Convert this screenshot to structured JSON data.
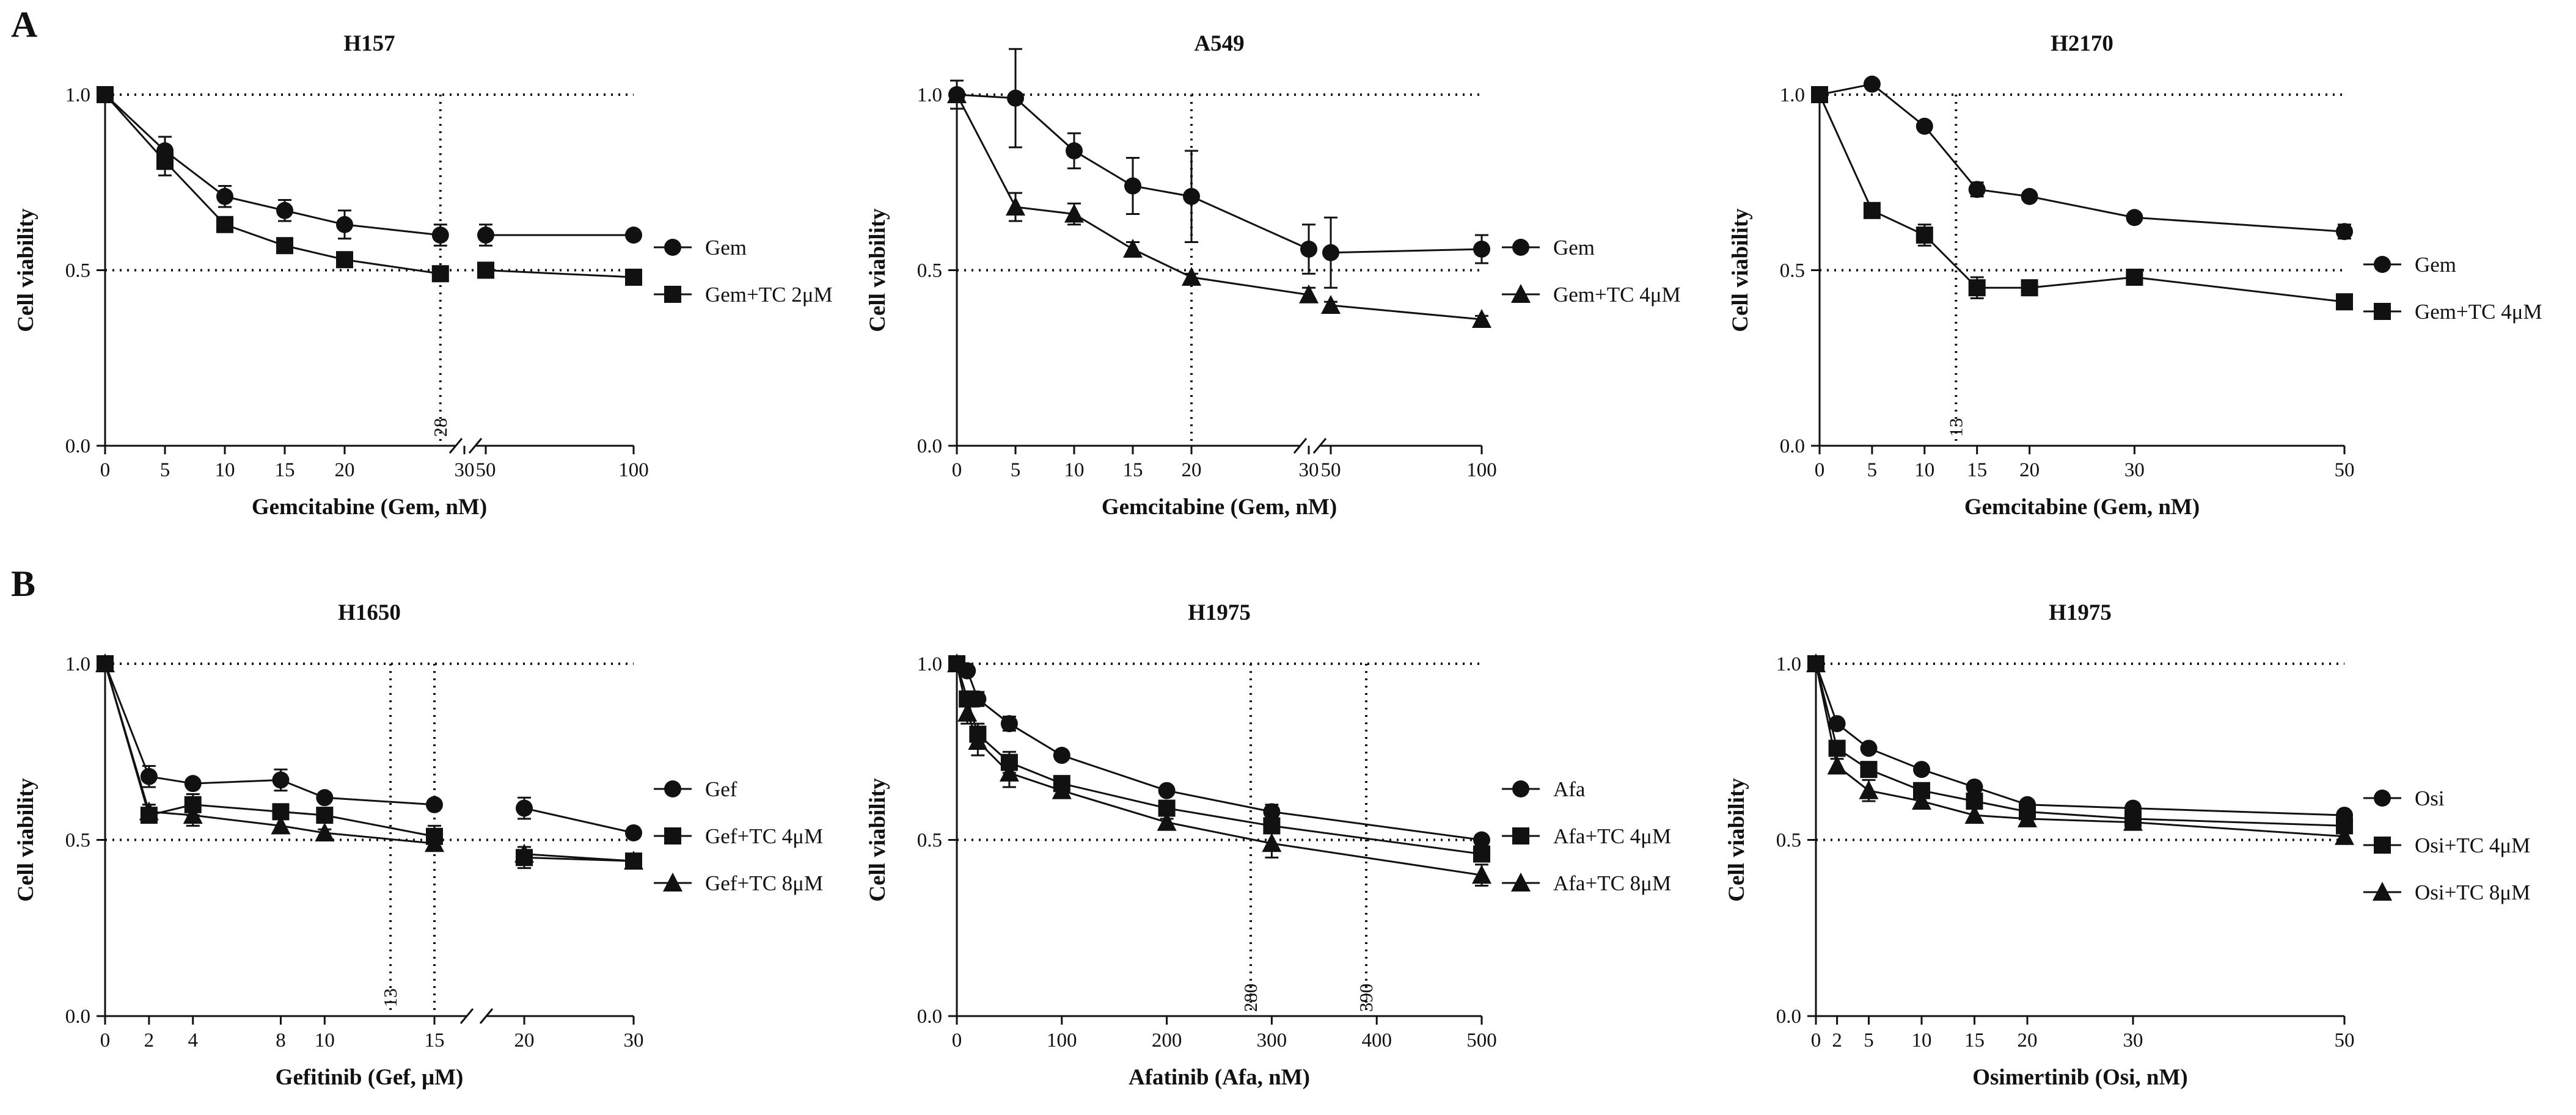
{
  "panel_labels": {
    "A": "A",
    "B": "B"
  },
  "chart_data": [
    {
      "type": "line",
      "title": "H157",
      "xlabel": "Gemcitabine (Gem, nM)",
      "ylabel": "Cell viability",
      "ylim": [
        0,
        1.0
      ],
      "yticks": [
        0.0,
        0.5,
        1.0
      ],
      "ytick_labels": [
        "0.0",
        "0.5",
        "1.0"
      ],
      "x_axis_break": true,
      "xticks": [
        0,
        5,
        10,
        15,
        20,
        30,
        50,
        100
      ],
      "xtick_labels": [
        "0",
        "5",
        "10",
        "15",
        "20",
        "30",
        "50",
        "100"
      ],
      "hlines": [
        1.0,
        0.5
      ],
      "vlines": [
        {
          "x": 28,
          "label": "28"
        }
      ],
      "series": [
        {
          "name": "Gem",
          "marker": "circle",
          "x": [
            0,
            5,
            10,
            15,
            20,
            28,
            50,
            100
          ],
          "values": [
            1.0,
            0.84,
            0.71,
            0.67,
            0.63,
            0.6,
            0.6,
            0.6
          ],
          "errors": [
            0.01,
            0.04,
            0.03,
            0.03,
            0.04,
            0.03,
            0.03,
            0.01
          ]
        },
        {
          "name": "Gem+TC 2μM",
          "marker": "square",
          "x": [
            0,
            5,
            10,
            15,
            20,
            28,
            50,
            100
          ],
          "values": [
            1.0,
            0.81,
            0.63,
            0.57,
            0.53,
            0.49,
            0.5,
            0.48
          ],
          "errors": [
            0.01,
            0.04,
            0.02,
            0.02,
            0.01,
            0.01,
            0.01,
            0.01
          ]
        }
      ]
    },
    {
      "type": "line",
      "title": "A549",
      "xlabel": "Gemcitabine (Gem, nM)",
      "ylabel": "Cell viability",
      "ylim": [
        0,
        1.0
      ],
      "yticks": [
        0.0,
        0.5,
        1.0
      ],
      "ytick_labels": [
        "0.0",
        "0.5",
        "1.0"
      ],
      "x_axis_break": true,
      "xticks": [
        0,
        5,
        10,
        15,
        20,
        30,
        50,
        100
      ],
      "xtick_labels": [
        "0",
        "5",
        "10",
        "15",
        "20",
        "30",
        "50",
        "100"
      ],
      "hlines": [
        1.0,
        0.5
      ],
      "vlines": [
        {
          "x": 20,
          "label": ""
        }
      ],
      "series": [
        {
          "name": "Gem",
          "marker": "circle",
          "x": [
            0,
            5,
            10,
            15,
            20,
            30,
            50,
            100
          ],
          "values": [
            1.0,
            0.99,
            0.84,
            0.74,
            0.71,
            0.56,
            0.55,
            0.56
          ],
          "errors": [
            0.01,
            0.14,
            0.05,
            0.08,
            0.13,
            0.07,
            0.1,
            0.04
          ]
        },
        {
          "name": "Gem+TC 4μM",
          "marker": "triangle",
          "x": [
            0,
            5,
            10,
            15,
            20,
            30,
            50,
            100
          ],
          "values": [
            1.0,
            0.68,
            0.66,
            0.56,
            0.48,
            0.43,
            0.4,
            0.36
          ],
          "errors": [
            0.04,
            0.04,
            0.03,
            0.02,
            0.01,
            0.02,
            0.01,
            0.01
          ]
        }
      ]
    },
    {
      "type": "line",
      "title": "H2170",
      "xlabel": "Gemcitabine (Gem, nM)",
      "ylabel": "Cell viability",
      "ylim": [
        0,
        1.0
      ],
      "yticks": [
        0.0,
        0.5,
        1.0
      ],
      "ytick_labels": [
        "0.0",
        "0.5",
        "1.0"
      ],
      "x_axis_break": false,
      "xticks": [
        0,
        5,
        10,
        15,
        20,
        30,
        50
      ],
      "xtick_labels": [
        "0",
        "5",
        "10",
        "15",
        "20",
        "30",
        "50"
      ],
      "hlines": [
        1.0,
        0.5
      ],
      "vlines": [
        {
          "x": 13,
          "label": "13"
        }
      ],
      "series": [
        {
          "name": "Gem",
          "marker": "circle",
          "x": [
            0,
            5,
            10,
            15,
            20,
            30,
            50
          ],
          "values": [
            1.0,
            1.03,
            0.91,
            0.73,
            0.71,
            0.65,
            0.61
          ],
          "errors": [
            0.01,
            0.01,
            0.01,
            0.02,
            0.01,
            0.01,
            0.02
          ]
        },
        {
          "name": "Gem+TC 4μM",
          "marker": "square",
          "x": [
            0,
            5,
            10,
            15,
            20,
            30,
            50
          ],
          "values": [
            1.0,
            0.67,
            0.6,
            0.45,
            0.45,
            0.48,
            0.41
          ],
          "errors": [
            0.01,
            0.01,
            0.03,
            0.03,
            0.01,
            0.01,
            0.01
          ]
        }
      ]
    },
    {
      "type": "line",
      "title": "H1650",
      "xlabel": "Gefitinib (Gef, μM)",
      "ylabel": "Cell viability",
      "ylim": [
        0,
        1.0
      ],
      "yticks": [
        0.0,
        0.5,
        1.0
      ],
      "ytick_labels": [
        "0.0",
        "0.5",
        "1.0"
      ],
      "x_axis_break": true,
      "xticks": [
        0,
        2,
        4,
        8,
        10,
        15,
        20,
        30
      ],
      "xtick_labels": [
        "0",
        "2",
        "4",
        "8",
        "10",
        "15",
        "20",
        "30"
      ],
      "hlines": [
        1.0,
        0.5
      ],
      "vlines": [
        {
          "x": 13,
          "label": "13"
        },
        {
          "x": 15,
          "label": ""
        }
      ],
      "series": [
        {
          "name": "Gef",
          "marker": "circle",
          "x": [
            0,
            2,
            4,
            8,
            10,
            15,
            20,
            30
          ],
          "values": [
            1.0,
            0.68,
            0.66,
            0.67,
            0.62,
            0.6,
            0.59,
            0.52
          ],
          "errors": [
            0.02,
            0.03,
            0.01,
            0.03,
            0.01,
            0.01,
            0.03,
            0.01
          ]
        },
        {
          "name": "Gef+TC 4μM",
          "marker": "square",
          "x": [
            0,
            2,
            4,
            8,
            10,
            15,
            20,
            30
          ],
          "values": [
            1.0,
            0.57,
            0.6,
            0.58,
            0.57,
            0.51,
            0.45,
            0.44
          ],
          "errors": [
            0.02,
            0.02,
            0.03,
            0.02,
            0.01,
            0.03,
            0.03,
            0.01
          ]
        },
        {
          "name": "Gef+TC 8μM",
          "marker": "triangle",
          "x": [
            0,
            2,
            4,
            8,
            10,
            15,
            20,
            30
          ],
          "values": [
            1.0,
            0.58,
            0.57,
            0.54,
            0.52,
            0.49,
            0.46,
            0.44
          ],
          "errors": [
            0.02,
            0.02,
            0.03,
            0.02,
            0.01,
            0.02,
            0.02,
            0.01
          ]
        }
      ]
    },
    {
      "type": "line",
      "title": "H1975",
      "xlabel": "Afatinib (Afa, nM)",
      "ylabel": "Cell viability",
      "ylim": [
        0,
        1.0
      ],
      "yticks": [
        0.0,
        0.5,
        1.0
      ],
      "ytick_labels": [
        "0.0",
        "0.5",
        "1.0"
      ],
      "x_axis_break": false,
      "xticks": [
        0,
        100,
        200,
        300,
        400,
        500
      ],
      "xtick_labels": [
        "0",
        "100",
        "200",
        "300",
        "400",
        "500"
      ],
      "hlines": [
        1.0,
        0.5
      ],
      "vlines": [
        {
          "x": 280,
          "label": "280"
        },
        {
          "x": 390,
          "label": "390"
        }
      ],
      "series": [
        {
          "name": "Afa",
          "marker": "circle",
          "x": [
            0,
            10,
            20,
            50,
            100,
            200,
            300,
            500
          ],
          "values": [
            1.0,
            0.98,
            0.9,
            0.83,
            0.74,
            0.64,
            0.58,
            0.5
          ],
          "errors": [
            0.01,
            0.01,
            0.02,
            0.02,
            0.01,
            0.01,
            0.02,
            0.01
          ]
        },
        {
          "name": "Afa+TC 4μM",
          "marker": "square",
          "x": [
            0,
            10,
            20,
            50,
            100,
            200,
            300,
            500
          ],
          "values": [
            1.0,
            0.9,
            0.8,
            0.72,
            0.66,
            0.59,
            0.54,
            0.46
          ],
          "errors": [
            0.01,
            0.02,
            0.03,
            0.03,
            0.02,
            0.01,
            0.02,
            0.02
          ]
        },
        {
          "name": "Afa+TC 8μM",
          "marker": "triangle",
          "x": [
            0,
            10,
            20,
            50,
            100,
            200,
            300,
            500
          ],
          "values": [
            1.0,
            0.86,
            0.78,
            0.69,
            0.64,
            0.55,
            0.49,
            0.4
          ],
          "errors": [
            0.01,
            0.03,
            0.04,
            0.04,
            0.02,
            0.01,
            0.04,
            0.03
          ]
        }
      ]
    },
    {
      "type": "line",
      "title": "H1975",
      "xlabel": "Osimertinib (Osi, nM)",
      "ylabel": "Cell viability",
      "ylim": [
        0,
        1.0
      ],
      "yticks": [
        0.0,
        0.5,
        1.0
      ],
      "ytick_labels": [
        "0.0",
        "0.5",
        "1.0"
      ],
      "x_axis_break": false,
      "xticks": [
        0,
        2,
        5,
        10,
        15,
        20,
        30,
        50
      ],
      "xtick_labels": [
        "0",
        "2",
        "5",
        "10",
        "15",
        "20",
        "30",
        "50"
      ],
      "hlines": [
        1.0,
        0.5
      ],
      "vlines": [],
      "series": [
        {
          "name": "Osi",
          "marker": "circle",
          "x": [
            0,
            2,
            5,
            10,
            15,
            20,
            30,
            50
          ],
          "values": [
            1.0,
            0.83,
            0.76,
            0.7,
            0.65,
            0.6,
            0.59,
            0.57
          ],
          "errors": [
            0.01,
            0.01,
            0.01,
            0.01,
            0.01,
            0.01,
            0.01,
            0.01
          ]
        },
        {
          "name": "Osi+TC 4μM",
          "marker": "square",
          "x": [
            0,
            2,
            5,
            10,
            15,
            20,
            30,
            50
          ],
          "values": [
            1.0,
            0.76,
            0.7,
            0.64,
            0.61,
            0.58,
            0.56,
            0.54
          ],
          "errors": [
            0.01,
            0.01,
            0.02,
            0.02,
            0.01,
            0.01,
            0.01,
            0.01
          ]
        },
        {
          "name": "Osi+TC 8μM",
          "marker": "triangle",
          "x": [
            0,
            2,
            5,
            10,
            15,
            20,
            30,
            50
          ],
          "values": [
            1.0,
            0.71,
            0.64,
            0.61,
            0.57,
            0.56,
            0.55,
            0.51
          ],
          "errors": [
            0.01,
            0.02,
            0.03,
            0.02,
            0.02,
            0.01,
            0.01,
            0.01
          ]
        }
      ]
    }
  ]
}
